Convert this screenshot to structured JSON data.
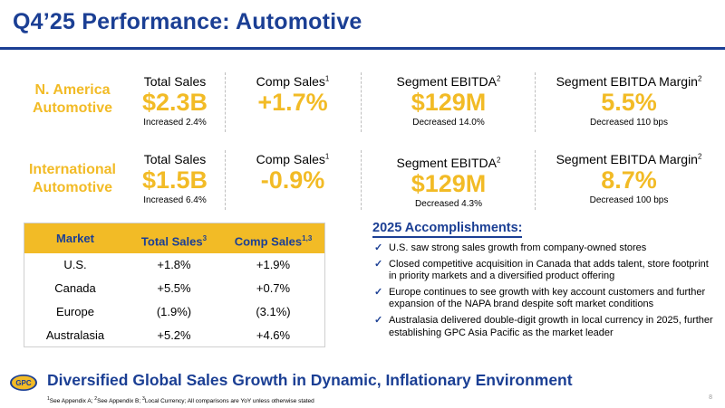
{
  "title": "Q4’25 Performance: Automotive",
  "colors": {
    "brand_blue": "#1b3f94",
    "accent_yellow": "#f2bb26"
  },
  "segments": [
    {
      "name_line1": "N. America",
      "name_line2": "Automotive",
      "metrics": [
        {
          "label": "Total Sales",
          "sup": "",
          "value": "$2.3B",
          "note": "Increased 2.4%"
        },
        {
          "label": "Comp Sales",
          "sup": "1",
          "value": "+1.7%",
          "note": ""
        },
        {
          "label": "Segment EBITDA",
          "sup": "2",
          "value": "$129M",
          "note": "Decreased 14.0%"
        },
        {
          "label": "Segment EBITDA Margin",
          "sup": "2",
          "value": "5.5%",
          "note": "Decreased 110 bps"
        }
      ]
    },
    {
      "name_line1": "International",
      "name_line2": "Automotive",
      "metrics": [
        {
          "label": "Total Sales",
          "sup": "",
          "value": "$1.5B",
          "note": "Increased 6.4%"
        },
        {
          "label": "Comp Sales",
          "sup": "1",
          "value": "-0.9%",
          "note": ""
        },
        {
          "label": "Segment EBITDA",
          "sup": "2",
          "value": "$129M",
          "note": "Decreased 4.3%"
        },
        {
          "label": "Segment EBITDA Margin",
          "sup": "2",
          "value": "8.7%",
          "note": "Decreased 100 bps"
        }
      ]
    }
  ],
  "market_table": {
    "headers": [
      {
        "label": "Market",
        "sup": ""
      },
      {
        "label": "Total Sales",
        "sup": "3"
      },
      {
        "label": "Comp Sales",
        "sup": "1,3"
      }
    ],
    "rows": [
      [
        "U.S.",
        "+1.8%",
        "+1.9%"
      ],
      [
        "Canada",
        "+5.5%",
        "+0.7%"
      ],
      [
        "Europe",
        "(1.9%)",
        "(3.1%)"
      ],
      [
        "Australasia",
        "+5.2%",
        "+4.6%"
      ]
    ]
  },
  "accomplishments": {
    "title": "2025 Accomplishments:",
    "check_icon": "✓",
    "items": [
      "U.S. saw strong sales growth from company-owned stores",
      "Closed competitive acquisition in Canada that adds talent, store footprint in priority markets and a diversified product offering",
      "Europe continues to see growth with key account customers and further expansion of the NAPA brand despite soft market conditions",
      "Australasia delivered double-digit growth in local currency in 2025, further establishing GPC Asia Pacific as the market leader"
    ]
  },
  "logo_text": "GPC",
  "tagline": "Diversified Global Sales Growth in Dynamic, Inflationary Environment",
  "footnote": {
    "s1": "1",
    "t1": "See Appendix A; ",
    "s2": "2",
    "t2": "See Appendix B; ",
    "s3": "3",
    "t3": "Local Currency; All comparisons are YoY unless otherwise stated"
  },
  "page_number": "8"
}
